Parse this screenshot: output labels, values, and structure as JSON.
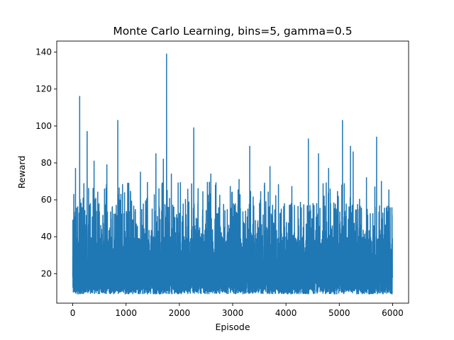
{
  "chart_data": {
    "type": "line",
    "title": "Monte Carlo Learning, bins=5, gamma=0.5",
    "xlabel": "Episode",
    "ylabel": "Reward",
    "xlim": [
      -300,
      6300
    ],
    "ylim": [
      4,
      146
    ],
    "xticks": [
      0,
      1000,
      2000,
      3000,
      4000,
      5000,
      6000
    ],
    "yticks": [
      20,
      40,
      60,
      80,
      100,
      120,
      140
    ],
    "line_color": "#1f77b4",
    "grid": false,
    "n_points": 6000,
    "series": [
      {
        "name": "",
        "peaks": [
          {
            "x": 3,
            "y": 49
          },
          {
            "x": 52,
            "y": 77
          },
          {
            "x": 130,
            "y": 116
          },
          {
            "x": 270,
            "y": 97
          },
          {
            "x": 400,
            "y": 81
          },
          {
            "x": 640,
            "y": 79
          },
          {
            "x": 845,
            "y": 103
          },
          {
            "x": 1030,
            "y": 69
          },
          {
            "x": 1270,
            "y": 75
          },
          {
            "x": 1560,
            "y": 85
          },
          {
            "x": 1700,
            "y": 82
          },
          {
            "x": 1760,
            "y": 139
          },
          {
            "x": 1850,
            "y": 74
          },
          {
            "x": 2270,
            "y": 99
          },
          {
            "x": 2590,
            "y": 74
          },
          {
            "x": 3120,
            "y": 71
          },
          {
            "x": 3320,
            "y": 89
          },
          {
            "x": 3700,
            "y": 78
          },
          {
            "x": 4420,
            "y": 93
          },
          {
            "x": 4610,
            "y": 85
          },
          {
            "x": 4800,
            "y": 77
          },
          {
            "x": 5060,
            "y": 103
          },
          {
            "x": 5210,
            "y": 89
          },
          {
            "x": 5260,
            "y": 86
          },
          {
            "x": 5510,
            "y": 72
          },
          {
            "x": 5700,
            "y": 94
          },
          {
            "x": 5790,
            "y": 70
          }
        ],
        "typical_range": [
          8,
          40
        ]
      }
    ]
  }
}
